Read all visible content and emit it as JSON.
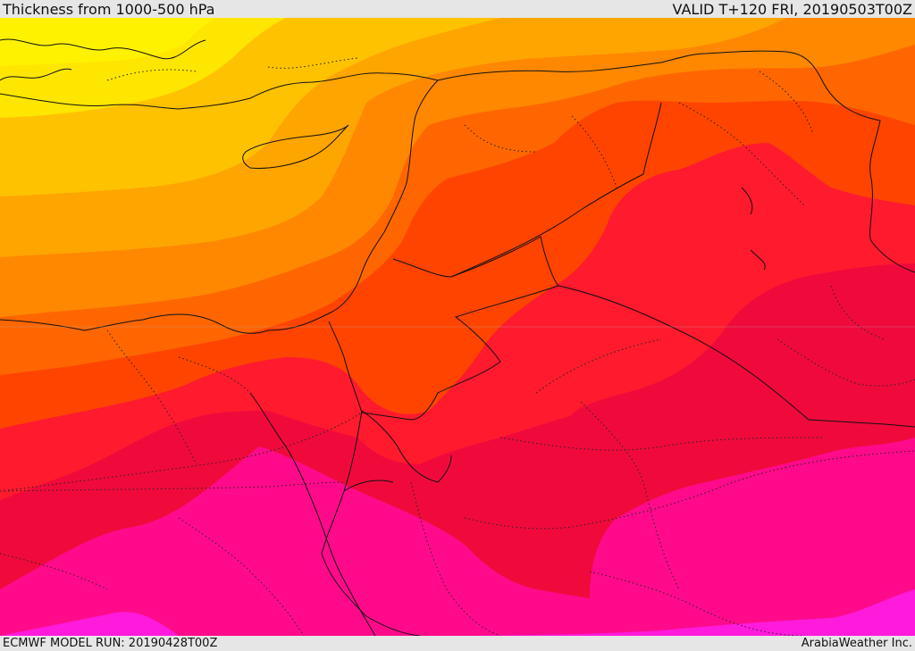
{
  "header": {
    "title": "Thickness from 1000-500 hPa",
    "valid": "VALID T+120 FRI, 20190503T00Z"
  },
  "footer": {
    "model_run": "ECMWF MODEL RUN: 20190428T00Z",
    "credit": "ArabiaWeather Inc."
  },
  "map": {
    "field": "1000-500 hPa thickness",
    "color_scale": [
      "#ffee00",
      "#ffcc00",
      "#ffaa00",
      "#ff8800",
      "#ff6600",
      "#ff4400",
      "#ff1a2e",
      "#f20060",
      "#ff0a8a",
      "#ff19d0"
    ],
    "color_scale_order": "low to high thickness"
  }
}
